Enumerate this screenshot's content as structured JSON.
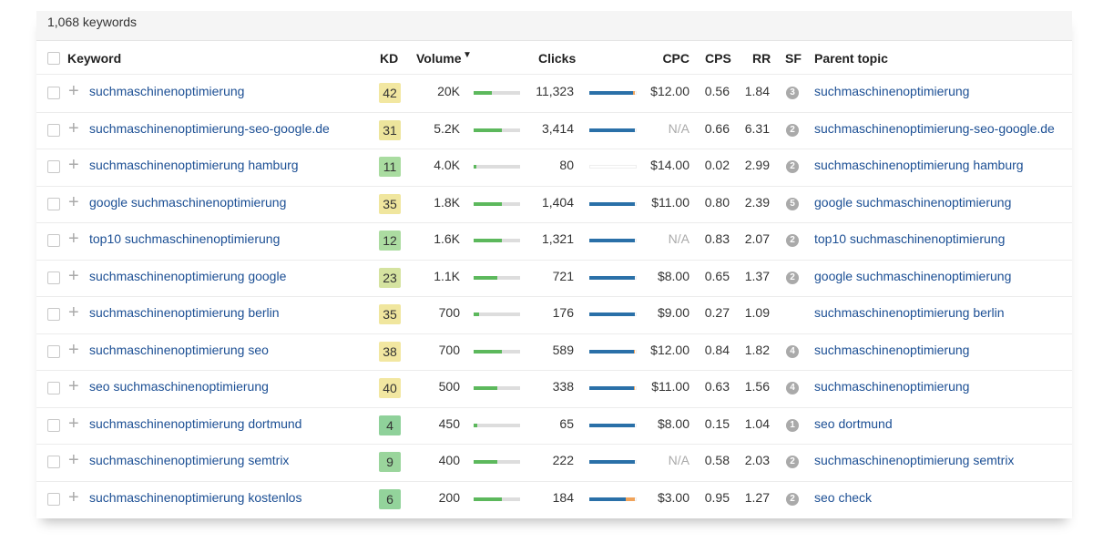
{
  "header": {
    "count": "1,068 keywords"
  },
  "columns": {
    "keyword": "Keyword",
    "kd": "KD",
    "volume": "Volume",
    "sort_arrow": "▼",
    "clicks": "Clicks",
    "cpc": "CPC",
    "cps": "CPS",
    "rr": "RR",
    "sf": "SF",
    "parent": "Parent topic"
  },
  "rows": [
    {
      "keyword": "suchmaschinenoptimierung",
      "kd": 42,
      "kd_color": "#f2e7a1",
      "volume": "20K",
      "volume_bar": 0.4,
      "clicks": "11,323",
      "clicks_bar": [
        0.95,
        0.05
      ],
      "cpc": "$12.00",
      "cps": "0.56",
      "rr": "1.84",
      "sf": 3,
      "parent": "suchmaschinenoptimierung"
    },
    {
      "keyword": "suchmaschinenoptimierung-seo-google.de",
      "kd": 31,
      "kd_color": "#ede59c",
      "volume": "5.2K",
      "volume_bar": 0.6,
      "clicks": "3,414",
      "clicks_bar": [
        1,
        0
      ],
      "cpc": "N/A",
      "cps": "0.66",
      "rr": "6.31",
      "sf": 2,
      "parent": "suchmaschinenoptimierung-seo-google.de"
    },
    {
      "keyword": "suchmaschinenoptimierung hamburg",
      "kd": 11,
      "kd_color": "#a9dca0",
      "volume": "4.0K",
      "volume_bar": 0.05,
      "clicks": "80",
      "clicks_bar": [
        0,
        0
      ],
      "cpc": "$14.00",
      "cps": "0.02",
      "rr": "2.99",
      "sf": 2,
      "parent": "suchmaschinenoptimierung hamburg"
    },
    {
      "keyword": "google suchmaschinenoptimierung",
      "kd": 35,
      "kd_color": "#f0e69e",
      "volume": "1.8K",
      "volume_bar": 0.6,
      "clicks": "1,404",
      "clicks_bar": [
        1,
        0
      ],
      "cpc": "$11.00",
      "cps": "0.80",
      "rr": "2.39",
      "sf": 5,
      "parent": "google suchmaschinenoptimierung"
    },
    {
      "keyword": "top10 suchmaschinenoptimierung",
      "kd": 12,
      "kd_color": "#acdca1",
      "volume": "1.6K",
      "volume_bar": 0.6,
      "clicks": "1,321",
      "clicks_bar": [
        1,
        0
      ],
      "cpc": "N/A",
      "cps": "0.83",
      "rr": "2.07",
      "sf": 2,
      "parent": "top10 suchmaschinenoptimierung"
    },
    {
      "keyword": "suchmaschinenoptimierung google",
      "kd": 23,
      "kd_color": "#d5e3a0",
      "volume": "1.1K",
      "volume_bar": 0.5,
      "clicks": "721",
      "clicks_bar": [
        1,
        0
      ],
      "cpc": "$8.00",
      "cps": "0.65",
      "rr": "1.37",
      "sf": 2,
      "parent": "google suchmaschinenoptimierung"
    },
    {
      "keyword": "suchmaschinenoptimierung berlin",
      "kd": 35,
      "kd_color": "#f0e69e",
      "volume": "700",
      "volume_bar": 0.12,
      "clicks": "176",
      "clicks_bar": [
        1,
        0
      ],
      "cpc": "$9.00",
      "cps": "0.27",
      "rr": "1.09",
      "sf": null,
      "parent": "suchmaschinenoptimierung berlin"
    },
    {
      "keyword": "suchmaschinenoptimierung seo",
      "kd": 38,
      "kd_color": "#f2e7a1",
      "volume": "700",
      "volume_bar": 0.6,
      "clicks": "589",
      "clicks_bar": [
        0.97,
        0.03
      ],
      "cpc": "$12.00",
      "cps": "0.84",
      "rr": "1.82",
      "sf": 4,
      "parent": "suchmaschinenoptimierung"
    },
    {
      "keyword": "seo suchmaschinenoptimierung",
      "kd": 40,
      "kd_color": "#f2e7a1",
      "volume": "500",
      "volume_bar": 0.5,
      "clicks": "338",
      "clicks_bar": [
        0.97,
        0.03
      ],
      "cpc": "$11.00",
      "cps": "0.63",
      "rr": "1.56",
      "sf": 4,
      "parent": "suchmaschinenoptimierung"
    },
    {
      "keyword": "suchmaschinenoptimierung dortmund",
      "kd": 4,
      "kd_color": "#8fd19a",
      "volume": "450",
      "volume_bar": 0.08,
      "clicks": "65",
      "clicks_bar": [
        1,
        0
      ],
      "cpc": "$8.00",
      "cps": "0.15",
      "rr": "1.04",
      "sf": 1,
      "parent": "seo dortmund"
    },
    {
      "keyword": "suchmaschinenoptimierung semtrix",
      "kd": 9,
      "kd_color": "#9ad59c",
      "volume": "400",
      "volume_bar": 0.5,
      "clicks": "222",
      "clicks_bar": [
        1,
        0
      ],
      "cpc": "N/A",
      "cps": "0.58",
      "rr": "2.03",
      "sf": 2,
      "parent": "suchmaschinenoptimierung semtrix"
    },
    {
      "keyword": "suchmaschinenoptimierung kostenlos",
      "kd": 6,
      "kd_color": "#93d39b",
      "volume": "200",
      "volume_bar": 0.6,
      "clicks": "184",
      "clicks_bar": [
        0.8,
        0.2
      ],
      "cpc": "$3.00",
      "cps": "0.95",
      "rr": "1.27",
      "sf": 2,
      "parent": "seo check"
    }
  ]
}
